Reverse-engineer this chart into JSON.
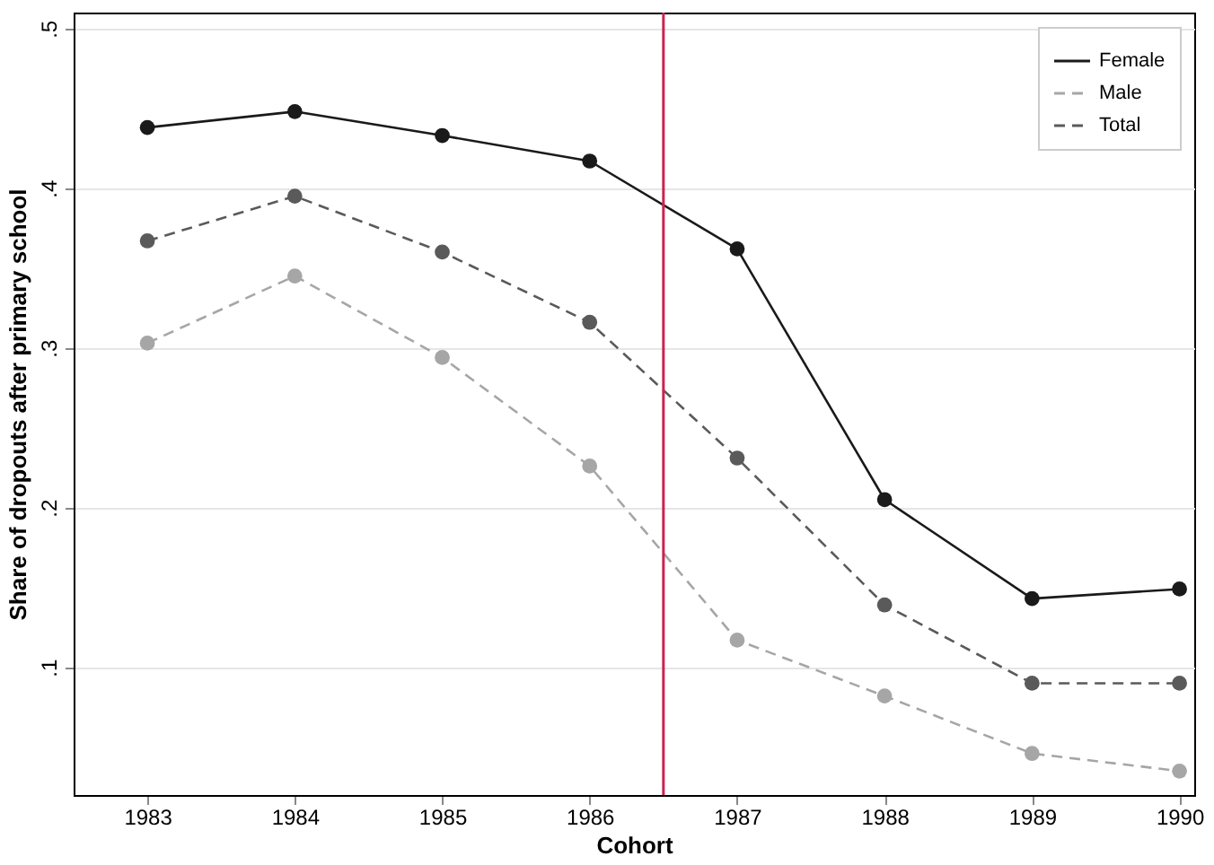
{
  "chart_data": {
    "type": "line",
    "xlabel": "Cohort",
    "ylabel": "Share of dropouts after primary school",
    "x": [
      1983,
      1984,
      1985,
      1986,
      1987,
      1988,
      1989,
      1990
    ],
    "series": [
      {
        "name": "Female",
        "color": "#1a1a1a",
        "line_style": "solid",
        "values": [
          0.438,
          0.448,
          0.433,
          0.417,
          0.362,
          0.205,
          0.143,
          0.149
        ]
      },
      {
        "name": "Male",
        "color": "#a6a6a6",
        "line_style": "dashed",
        "values": [
          0.303,
          0.345,
          0.294,
          0.226,
          0.117,
          0.082,
          0.046,
          0.035
        ]
      },
      {
        "name": "Total",
        "color": "#5a5a5a",
        "line_style": "dashed",
        "values": [
          0.367,
          0.395,
          0.36,
          0.316,
          0.231,
          0.139,
          0.09,
          0.09
        ]
      }
    ],
    "xlim": [
      1982.5,
      1990.1
    ],
    "ylim": [
      0.02,
      0.51
    ],
    "xticks": [
      1983,
      1984,
      1985,
      1986,
      1987,
      1988,
      1989,
      1990
    ],
    "yticks": [
      {
        "value": 0.1,
        "label": ".1"
      },
      {
        "value": 0.2,
        "label": ".2"
      },
      {
        "value": 0.3,
        "label": ".3"
      },
      {
        "value": 0.4,
        "label": ".4"
      },
      {
        "value": 0.5,
        "label": ".5"
      }
    ],
    "ref_lines": [
      {
        "axis": "x",
        "value": 1986.5,
        "color": "#c8264f"
      }
    ],
    "grid": "y",
    "legend": "top right",
    "marker": "circle"
  }
}
